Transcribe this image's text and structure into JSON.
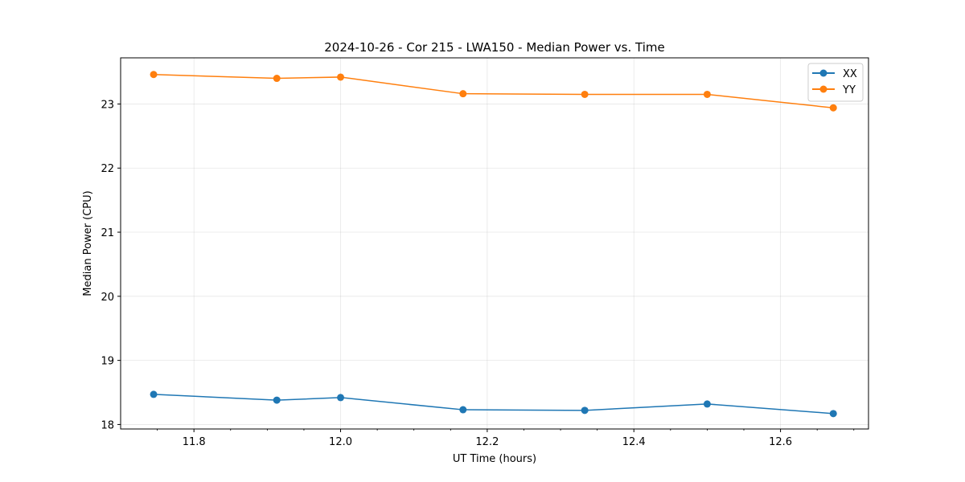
{
  "chart_data": {
    "type": "line",
    "title": "2024-10-26 - Cor 215 - LWA150 - Median Power vs. Time",
    "xlabel": "UT Time (hours)",
    "ylabel": "Median Power (CPU)",
    "xlim": [
      11.7,
      12.72
    ],
    "ylim": [
      17.93,
      23.72
    ],
    "x_ticks": [
      11.8,
      12.0,
      12.2,
      12.4,
      12.6
    ],
    "x_tick_labels": [
      "11.8",
      "12.0",
      "12.2",
      "12.4",
      "12.6"
    ],
    "x_minor_ticks": [
      11.75,
      11.85,
      11.9,
      11.95,
      12.05,
      12.1,
      12.15,
      12.25,
      12.3,
      12.35,
      12.45,
      12.5,
      12.55,
      12.65,
      12.7
    ],
    "y_ticks": [
      18,
      19,
      20,
      21,
      22,
      23
    ],
    "y_tick_labels": [
      "18",
      "19",
      "20",
      "21",
      "22",
      "23"
    ],
    "grid": true,
    "legend_position": "top-right",
    "x": [
      11.745,
      11.913,
      12.0,
      12.167,
      12.333,
      12.5,
      12.672
    ],
    "series": [
      {
        "name": "XX",
        "color": "#1f77b4",
        "values": [
          18.47,
          18.38,
          18.42,
          18.23,
          18.22,
          18.32,
          18.17
        ]
      },
      {
        "name": "YY",
        "color": "#ff7f0e",
        "values": [
          23.46,
          23.4,
          23.42,
          23.16,
          23.15,
          23.15,
          22.94
        ]
      }
    ]
  }
}
